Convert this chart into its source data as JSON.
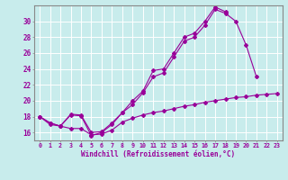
{
  "xlabel": "Windchill (Refroidissement éolien,°C)",
  "background_color": "#c8ecec",
  "line_color": "#990099",
  "grid_color": "#ffffff",
  "x_ticks": [
    0,
    1,
    2,
    3,
    4,
    5,
    6,
    7,
    8,
    9,
    10,
    11,
    12,
    13,
    14,
    15,
    16,
    17,
    18,
    19,
    20,
    21,
    22,
    23
  ],
  "ylim": [
    15.0,
    32.0
  ],
  "xlim": [
    -0.5,
    23.5
  ],
  "y_ticks": [
    16,
    18,
    20,
    22,
    24,
    26,
    28,
    30
  ],
  "series1_x": [
    0,
    1,
    2,
    3,
    4,
    5,
    6,
    7,
    8,
    9,
    10,
    11,
    12,
    13,
    14,
    15,
    16,
    17,
    18,
    19,
    20,
    21
  ],
  "series1_y": [
    18.0,
    17.2,
    16.8,
    18.2,
    18.1,
    15.6,
    16.0,
    17.0,
    18.5,
    19.5,
    21.0,
    23.0,
    23.5,
    25.5,
    27.5,
    28.0,
    29.5,
    31.5,
    31.0,
    30.0,
    27.0,
    23.0
  ],
  "series2_x": [
    0,
    1,
    2,
    3,
    4,
    5,
    6,
    7,
    8,
    9,
    10,
    11,
    12,
    13,
    14,
    15,
    16,
    17,
    18
  ],
  "series2_y": [
    18.0,
    17.2,
    16.8,
    18.3,
    18.2,
    16.0,
    16.1,
    17.2,
    18.5,
    20.0,
    21.2,
    23.8,
    24.0,
    26.0,
    28.0,
    28.5,
    30.0,
    31.8,
    31.2
  ],
  "series3_x": [
    0,
    1,
    2,
    3,
    4,
    5,
    6,
    7,
    8,
    9,
    10,
    11,
    12,
    13,
    14,
    15,
    16,
    17,
    18,
    19,
    20,
    21,
    22,
    23
  ],
  "series3_y": [
    18.0,
    17.0,
    16.8,
    16.5,
    16.5,
    15.7,
    15.8,
    16.3,
    17.3,
    17.8,
    18.2,
    18.5,
    18.7,
    19.0,
    19.3,
    19.5,
    19.8,
    20.0,
    20.2,
    20.4,
    20.5,
    20.7,
    20.8,
    20.9
  ]
}
